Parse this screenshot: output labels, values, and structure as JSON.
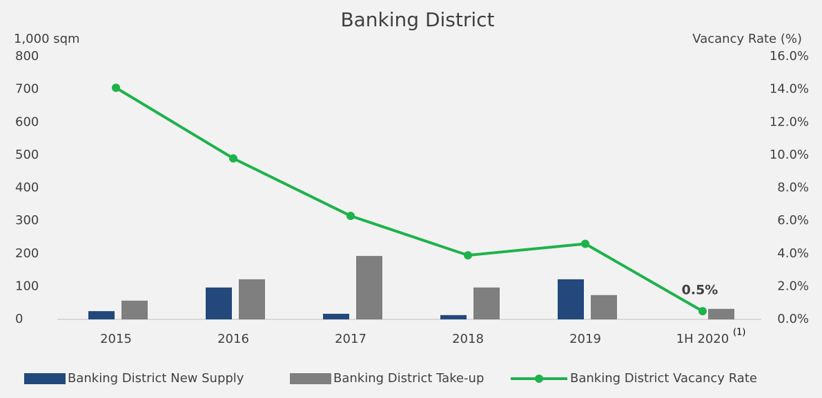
{
  "chart_data": {
    "type": "bar",
    "title": "Banking District",
    "y_label": "1,000 sqm",
    "y2_label": "Vacancy Rate (%)",
    "categories": [
      "2015",
      "2016",
      "2017",
      "2018",
      "2019",
      "1H 2020"
    ],
    "annotation": "(1)",
    "series": [
      {
        "name": "Banking District New Supply",
        "type": "bar",
        "color": "#23497c",
        "values": [
          25,
          97,
          17,
          13,
          122,
          0
        ]
      },
      {
        "name": "Banking District Take-up",
        "type": "bar",
        "color": "#7f7f7f",
        "values": [
          57,
          122,
          193,
          97,
          74,
          32
        ]
      },
      {
        "name": "Banking District Vacancy Rate",
        "type": "line",
        "axis": "y2",
        "color": "#1eb24b",
        "values": [
          14.1,
          9.8,
          6.3,
          3.9,
          4.6,
          0.5
        ],
        "value_labels": [
          null,
          null,
          null,
          null,
          null,
          "0.5%"
        ]
      }
    ],
    "ylim": [
      0,
      800
    ],
    "yticks": [
      0,
      100,
      200,
      300,
      400,
      500,
      600,
      700,
      800
    ],
    "y2lim": [
      0,
      16
    ],
    "y2ticks": [
      {
        "value": 0,
        "label": "0.0%"
      },
      {
        "value": 2,
        "label": "2.0%"
      },
      {
        "value": 4,
        "label": "4.0%"
      },
      {
        "value": 6,
        "label": "6.0%"
      },
      {
        "value": 8,
        "label": "8.0%"
      },
      {
        "value": 10,
        "label": "10.0%"
      },
      {
        "value": 12,
        "label": "12.0%"
      },
      {
        "value": 14,
        "label": "14.0%"
      },
      {
        "value": 16,
        "label": "16.0%"
      }
    ],
    "grid": false,
    "legend": "bottom"
  }
}
